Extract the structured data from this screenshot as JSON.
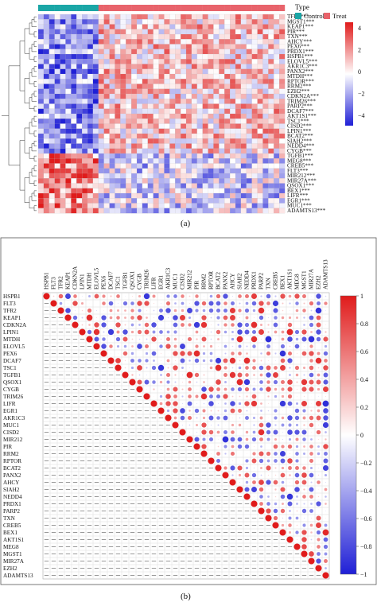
{
  "panel_a": {
    "label": "(a)",
    "type_legend": {
      "title": "Type",
      "items": [
        {
          "label": "Control",
          "color": "#1aa6a6"
        },
        {
          "label": "Treat",
          "color": "#e8636b"
        }
      ]
    },
    "color_scale": {
      "ticks": [
        "4",
        "2",
        "0",
        "−2",
        "−4"
      ],
      "low": "#1f1fd6",
      "mid": "#ffffff",
      "high": "#e01b1b"
    },
    "n_control": 11,
    "n_treat": 34,
    "genes": [
      "TFR2***",
      "MGST1***",
      "KEAP1***",
      "PIR***",
      "TXN***",
      "AHCY***",
      "PEX6***",
      "PRDX1***",
      "HSPB1***",
      "ELOVL5***",
      "AKR1C3***",
      "PANX2***",
      "MTDH***",
      "RPTOR***",
      "RRM2***",
      "EZH2***",
      "CDKN2A***",
      "TRIM26***",
      "PARP2***",
      "DCAF7***",
      "AKT1S1***",
      "TSC1***",
      "CISD2***",
      "LPIN1***",
      "BCAT2***",
      "SIAH2***",
      "NEDD4***",
      "CYGB***",
      "TGFB1***",
      "MEG8***",
      "CREB5***",
      "FLT3***",
      "MIR212***",
      "MIR27A***",
      "QSOX1***",
      "BEX1***",
      "LIFR***",
      "EGR1***",
      "MUC1***",
      "ADAMTS13***"
    ]
  },
  "panel_b": {
    "label": "(b)",
    "genes": [
      "HSPB1",
      "FLT3",
      "TFR2",
      "KEAP1",
      "CDKN2A",
      "LPIN1",
      "MTDH",
      "ELOVL5",
      "PEX6",
      "DCAF7",
      "TSC1",
      "TGFB1",
      "QSOX1",
      "CYGB",
      "TRIM26",
      "LIFR",
      "EGR1",
      "AKR1C3",
      "MUC1",
      "CISD2",
      "MIR212",
      "PIR",
      "RRM2",
      "RPTOR",
      "BCAT2",
      "PANX2",
      "AHCY",
      "SIAH2",
      "NEDD4",
      "PRDX1",
      "PARP2",
      "TXN",
      "CREB5",
      "BEX1",
      "AKT1S1",
      "MEG8",
      "MGST1",
      "MIR27A",
      "EZH2",
      "ADAMTS13"
    ],
    "color_scale": {
      "ticks": [
        "1",
        "0.8",
        "0.6",
        "0.4",
        "0.2",
        "0",
        "−0.2",
        "−0.4",
        "−0.6",
        "−0.8",
        "−1"
      ],
      "low": "#1f1fd6",
      "mid": "#ffffff",
      "high": "#e01b1b"
    }
  }
}
